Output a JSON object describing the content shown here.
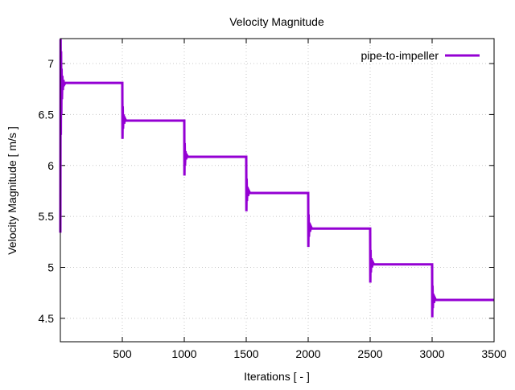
{
  "chart_data": {
    "type": "line",
    "title": "Velocity Magnitude",
    "xlabel": "Iterations [ - ]",
    "ylabel": "Velocity Magnitude [ m/s ]",
    "xlim": [
      0,
      3500
    ],
    "ylim": [
      4.27,
      7.245
    ],
    "xticks": [
      500,
      1000,
      1500,
      2000,
      2500,
      3000,
      3500
    ],
    "yticks": [
      4.5,
      5,
      5.5,
      6,
      6.5,
      7
    ],
    "ytick_labels": [
      "4.5",
      "5",
      "5.5",
      "6",
      "6.5",
      "7"
    ],
    "grid": true,
    "legend_position": "top-right",
    "series": [
      {
        "name": "pipe-to-impeller",
        "color": "#9400d3",
        "points": [
          [
            0,
            5.34
          ],
          [
            2,
            7.24
          ],
          [
            4,
            6.3
          ],
          [
            6,
            7.12
          ],
          [
            8,
            6.5
          ],
          [
            10,
            6.95
          ],
          [
            13,
            6.65
          ],
          [
            16,
            6.88
          ],
          [
            20,
            6.74
          ],
          [
            25,
            6.84
          ],
          [
            30,
            6.79
          ],
          [
            40,
            6.81
          ],
          [
            500,
            6.81
          ],
          [
            501,
            6.26
          ],
          [
            503,
            6.58
          ],
          [
            506,
            6.36
          ],
          [
            510,
            6.5
          ],
          [
            515,
            6.41
          ],
          [
            522,
            6.46
          ],
          [
            530,
            6.44
          ],
          [
            1000,
            6.44
          ],
          [
            1001,
            5.9
          ],
          [
            1003,
            6.22
          ],
          [
            1006,
            6.0
          ],
          [
            1010,
            6.14
          ],
          [
            1015,
            6.06
          ],
          [
            1022,
            6.1
          ],
          [
            1030,
            6.085
          ],
          [
            1500,
            6.085
          ],
          [
            1501,
            5.55
          ],
          [
            1503,
            5.87
          ],
          [
            1506,
            5.65
          ],
          [
            1510,
            5.79
          ],
          [
            1515,
            5.7
          ],
          [
            1522,
            5.75
          ],
          [
            1530,
            5.73
          ],
          [
            2000,
            5.73
          ],
          [
            2001,
            5.2
          ],
          [
            2003,
            5.52
          ],
          [
            2006,
            5.3
          ],
          [
            2010,
            5.44
          ],
          [
            2015,
            5.35
          ],
          [
            2022,
            5.4
          ],
          [
            2030,
            5.38
          ],
          [
            2500,
            5.38
          ],
          [
            2501,
            4.85
          ],
          [
            2503,
            5.17
          ],
          [
            2506,
            4.95
          ],
          [
            2510,
            5.09
          ],
          [
            2515,
            5.0
          ],
          [
            2522,
            5.05
          ],
          [
            2530,
            5.03
          ],
          [
            3000,
            5.03
          ],
          [
            3001,
            4.51
          ],
          [
            3003,
            4.82
          ],
          [
            3006,
            4.6
          ],
          [
            3010,
            4.74
          ],
          [
            3015,
            4.65
          ],
          [
            3022,
            4.7
          ],
          [
            3030,
            4.68
          ],
          [
            3500,
            4.68
          ]
        ]
      }
    ]
  }
}
